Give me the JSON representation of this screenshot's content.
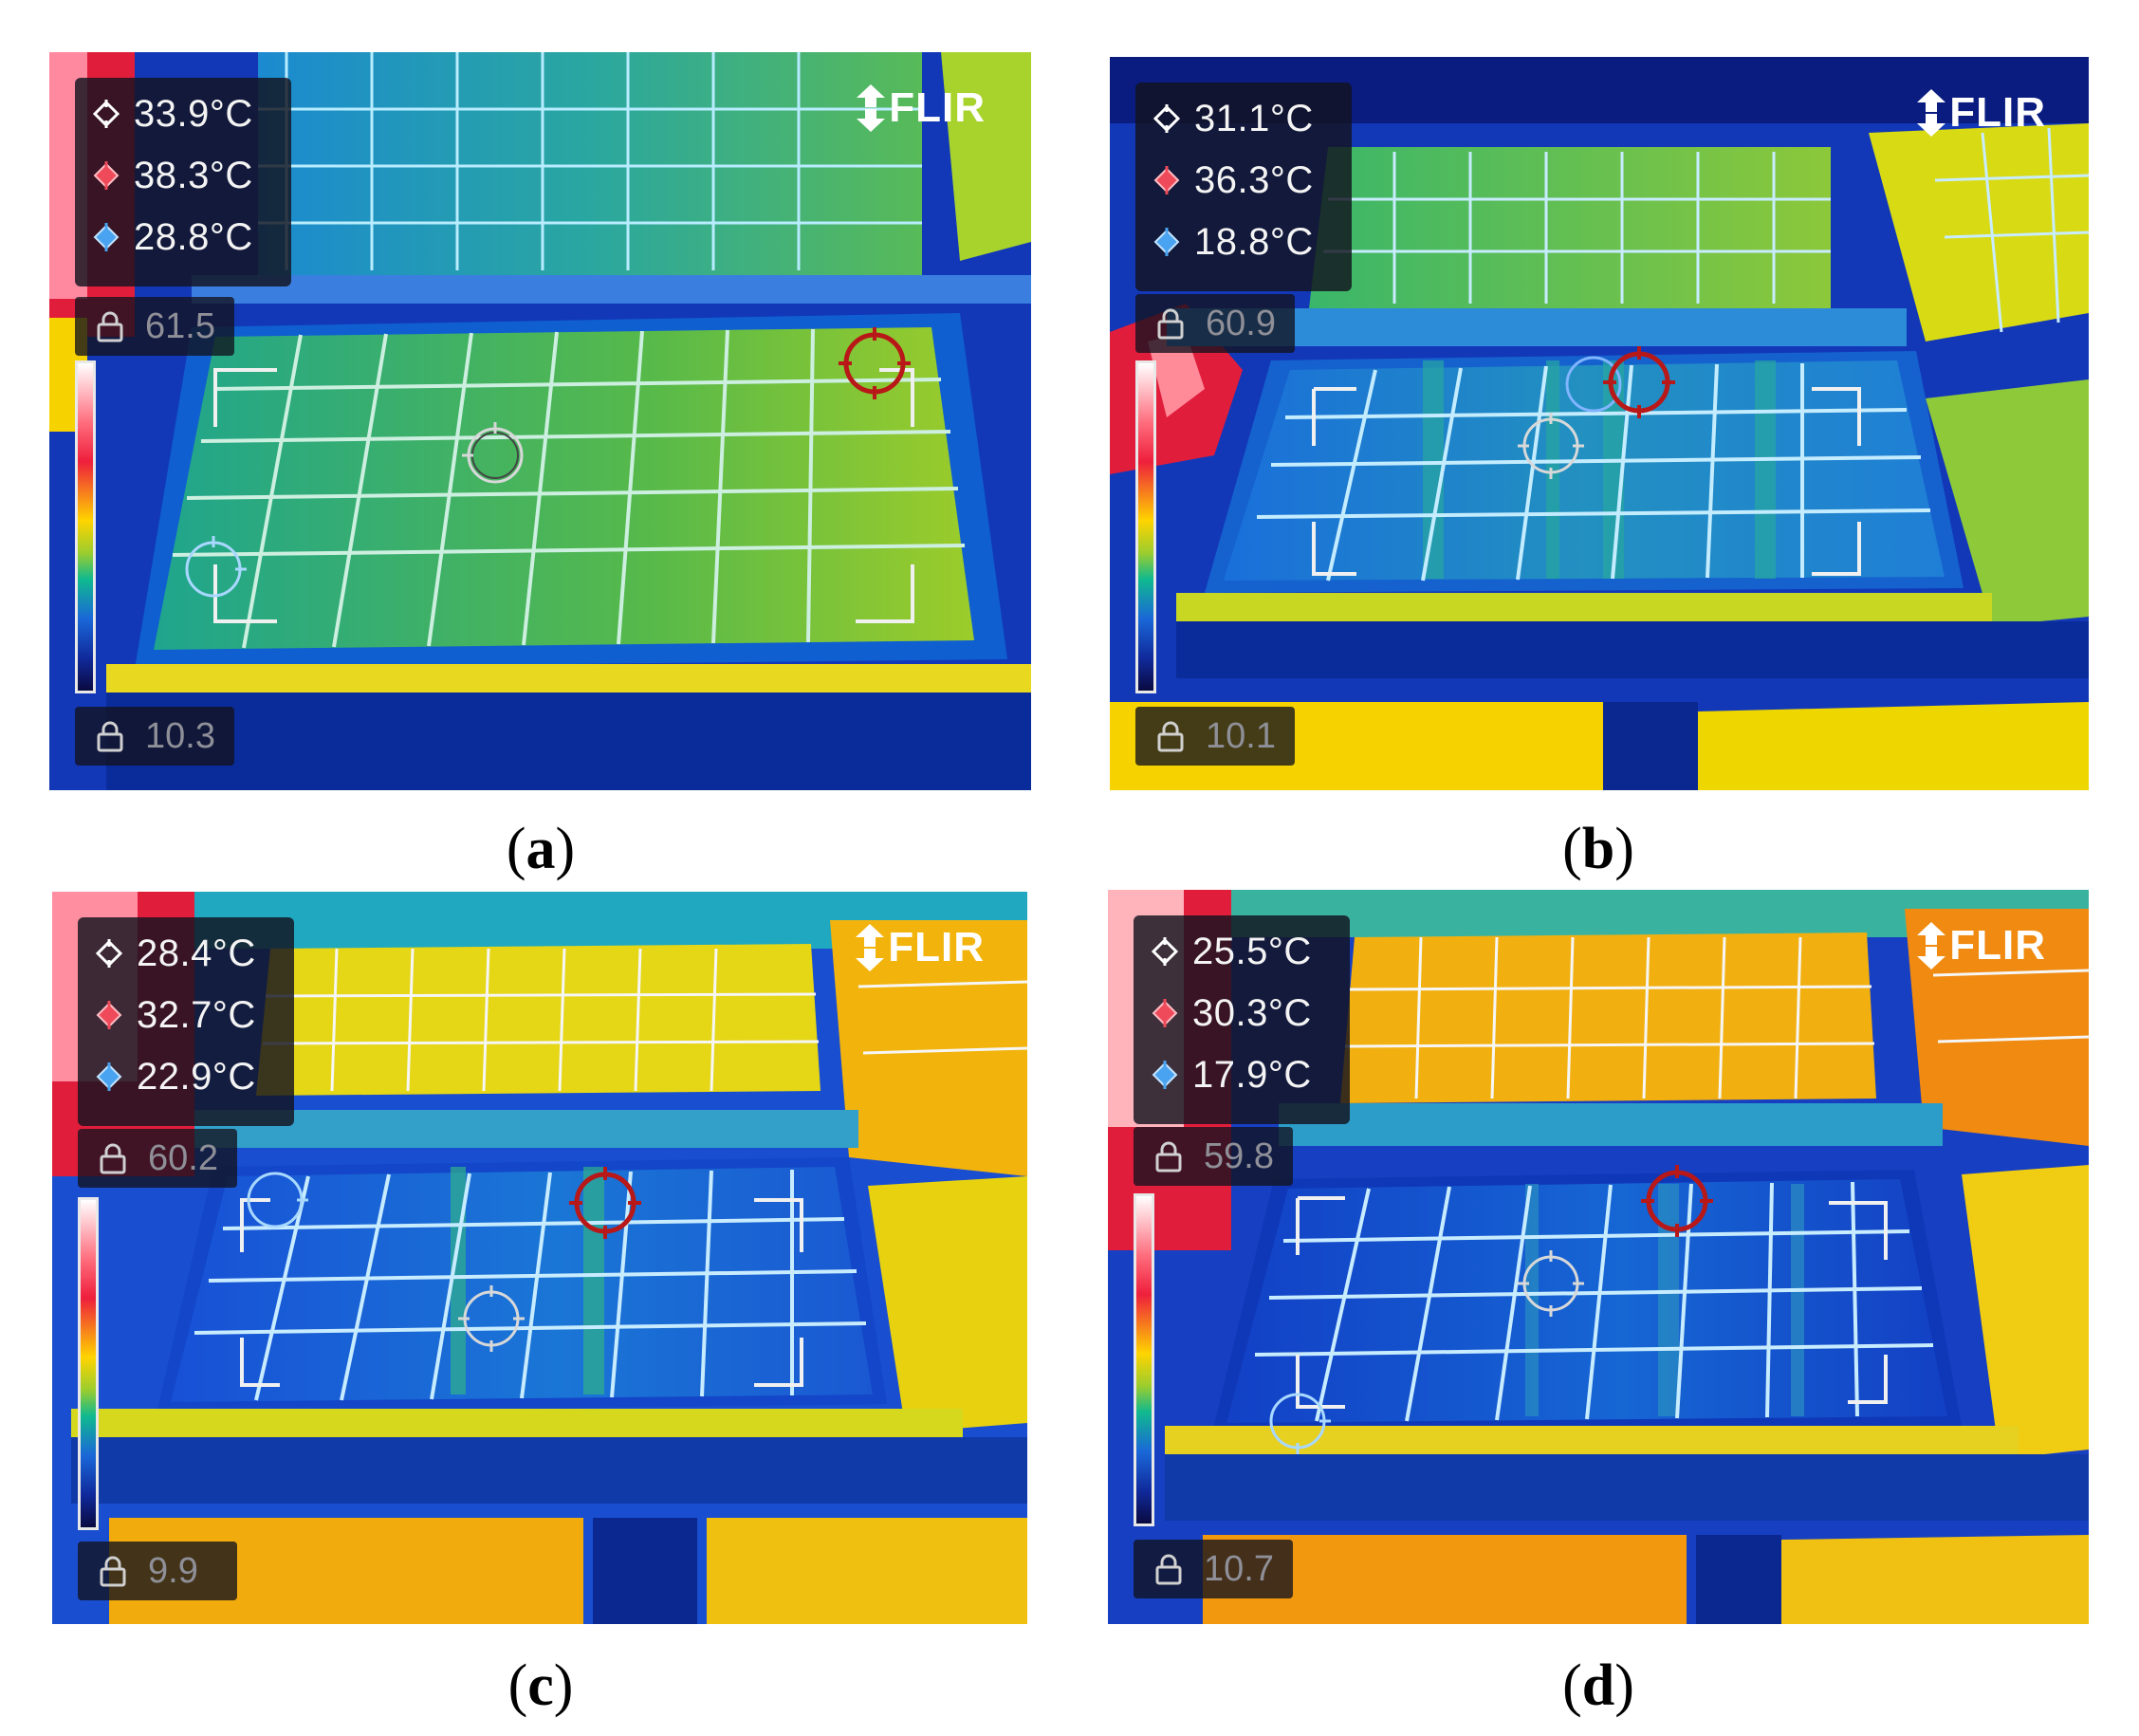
{
  "panels": [
    {
      "id": "a",
      "label": "a",
      "logo": "FLIR",
      "readings": [
        {
          "icon": "center-spot-icon",
          "value": "33.9°C"
        },
        {
          "icon": "hot-spot-icon",
          "value": "38.3°C"
        },
        {
          "icon": "cold-spot-icon",
          "value": "28.8°C"
        }
      ],
      "scale_max": "61.5",
      "scale_min": "10.3"
    },
    {
      "id": "b",
      "label": "b",
      "logo": "FLIR",
      "readings": [
        {
          "icon": "center-spot-icon",
          "value": "31.1°C"
        },
        {
          "icon": "hot-spot-icon",
          "value": "36.3°C"
        },
        {
          "icon": "cold-spot-icon",
          "value": "18.8°C"
        }
      ],
      "scale_max": "60.9",
      "scale_min": "10.1"
    },
    {
      "id": "c",
      "label": "c",
      "logo": "FLIR",
      "readings": [
        {
          "icon": "center-spot-icon",
          "value": "28.4°C"
        },
        {
          "icon": "hot-spot-icon",
          "value": "32.7°C"
        },
        {
          "icon": "cold-spot-icon",
          "value": "22.9°C"
        }
      ],
      "scale_max": "60.2",
      "scale_min": "9.9"
    },
    {
      "id": "d",
      "label": "d",
      "logo": "FLIR",
      "readings": [
        {
          "icon": "center-spot-icon",
          "value": "25.5°C"
        },
        {
          "icon": "hot-spot-icon",
          "value": "30.3°C"
        },
        {
          "icon": "cold-spot-icon",
          "value": "17.9°C"
        }
      ],
      "scale_max": "59.8",
      "scale_min": "10.7"
    }
  ]
}
